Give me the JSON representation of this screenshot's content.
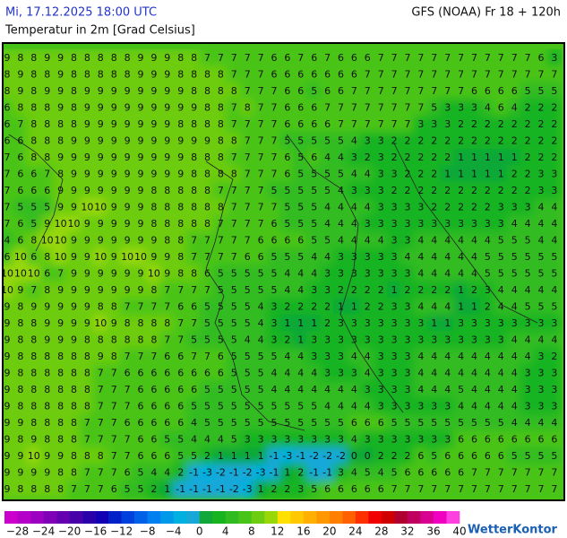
{
  "header": {
    "date": "Mi, 17.12.2025 18:00 UTC",
    "model": "GFS (NOAA) Fr 18 + 120h",
    "title": "Temperatur in 2m [Grad Celsius]"
  },
  "map": {
    "rows": [
      [
        9,
        8,
        8,
        9,
        9,
        8,
        8,
        8,
        8,
        8,
        9,
        9,
        9,
        8,
        8,
        7,
        7,
        7,
        7,
        7,
        6,
        6,
        7,
        6,
        7,
        6,
        6,
        6,
        7,
        7,
        7,
        7,
        7,
        7,
        7,
        7,
        7,
        7,
        7,
        7,
        6,
        3
      ],
      [
        8,
        9,
        8,
        8,
        9,
        8,
        8,
        8,
        8,
        8,
        9,
        9,
        9,
        8,
        8,
        8,
        8,
        7,
        7,
        7,
        6,
        6,
        6,
        6,
        6,
        6,
        6,
        7,
        7,
        7,
        7,
        7,
        7,
        7,
        7,
        7,
        7,
        7,
        7,
        7,
        7,
        7
      ],
      [
        8,
        9,
        8,
        9,
        9,
        8,
        9,
        9,
        9,
        9,
        9,
        9,
        9,
        9,
        8,
        8,
        8,
        8,
        7,
        7,
        7,
        6,
        6,
        5,
        6,
        6,
        7,
        7,
        7,
        7,
        7,
        7,
        7,
        7,
        7,
        6,
        6,
        6,
        6,
        5,
        5,
        5
      ],
      [
        6,
        8,
        8,
        8,
        9,
        8,
        9,
        9,
        9,
        9,
        9,
        9,
        9,
        9,
        9,
        8,
        8,
        7,
        8,
        7,
        7,
        6,
        6,
        6,
        7,
        7,
        7,
        7,
        7,
        7,
        7,
        7,
        5,
        3,
        3,
        3,
        4,
        6,
        4,
        2,
        2,
        2
      ],
      [
        6,
        7,
        8,
        8,
        8,
        8,
        9,
        9,
        9,
        9,
        9,
        9,
        9,
        8,
        8,
        8,
        8,
        7,
        7,
        7,
        7,
        6,
        6,
        6,
        6,
        7,
        7,
        7,
        7,
        7,
        7,
        3,
        3,
        3,
        2,
        2,
        2,
        2,
        2,
        2,
        2,
        2
      ],
      [
        6,
        6,
        8,
        8,
        8,
        9,
        9,
        9,
        9,
        9,
        9,
        9,
        9,
        9,
        9,
        9,
        8,
        8,
        7,
        7,
        7,
        5,
        5,
        5,
        5,
        5,
        4,
        3,
        3,
        2,
        2,
        2,
        2,
        2,
        2,
        2,
        2,
        2,
        2,
        2,
        2,
        2
      ],
      [
        7,
        6,
        8,
        8,
        9,
        9,
        9,
        9,
        9,
        9,
        9,
        9,
        9,
        9,
        8,
        8,
        8,
        7,
        7,
        7,
        7,
        6,
        5,
        6,
        4,
        4,
        3,
        2,
        3,
        2,
        2,
        2,
        2,
        2,
        1,
        1,
        1,
        1,
        1,
        2,
        2,
        2
      ],
      [
        7,
        6,
        6,
        7,
        8,
        9,
        9,
        9,
        9,
        9,
        9,
        9,
        9,
        9,
        8,
        8,
        8,
        8,
        7,
        7,
        7,
        6,
        5,
        5,
        5,
        5,
        4,
        4,
        3,
        3,
        2,
        2,
        2,
        1,
        1,
        1,
        1,
        1,
        2,
        2,
        3,
        3
      ],
      [
        7,
        6,
        6,
        6,
        9,
        9,
        9,
        9,
        9,
        9,
        9,
        8,
        8,
        8,
        8,
        8,
        7,
        7,
        7,
        7,
        5,
        5,
        5,
        5,
        5,
        4,
        3,
        3,
        3,
        2,
        2,
        2,
        2,
        2,
        2,
        2,
        2,
        2,
        2,
        2,
        3,
        3
      ],
      [
        7,
        5,
        5,
        5,
        9,
        9,
        10,
        10,
        9,
        9,
        9,
        8,
        8,
        8,
        8,
        8,
        8,
        7,
        7,
        7,
        7,
        5,
        5,
        5,
        4,
        4,
        4,
        4,
        3,
        3,
        3,
        3,
        2,
        2,
        2,
        2,
        2,
        3,
        3,
        3,
        4,
        4
      ],
      [
        7,
        6,
        5,
        9,
        10,
        10,
        9,
        9,
        9,
        9,
        9,
        8,
        8,
        8,
        8,
        8,
        7,
        7,
        7,
        7,
        6,
        5,
        5,
        5,
        4,
        4,
        4,
        3,
        3,
        3,
        3,
        3,
        3,
        3,
        3,
        3,
        3,
        3,
        4,
        4,
        4,
        4
      ],
      [
        4,
        6,
        8,
        10,
        10,
        9,
        9,
        9,
        9,
        9,
        9,
        9,
        8,
        8,
        7,
        7,
        7,
        7,
        7,
        6,
        6,
        6,
        6,
        5,
        5,
        4,
        4,
        4,
        4,
        3,
        3,
        4,
        4,
        4,
        4,
        4,
        4,
        5,
        5,
        5,
        4,
        4
      ],
      [
        6,
        10,
        6,
        8,
        10,
        9,
        9,
        10,
        9,
        10,
        10,
        9,
        9,
        8,
        7,
        7,
        7,
        7,
        6,
        6,
        5,
        5,
        5,
        4,
        4,
        3,
        3,
        3,
        3,
        3,
        4,
        4,
        4,
        4,
        4,
        4,
        5,
        5,
        5,
        5,
        5,
        5
      ],
      [
        10,
        10,
        10,
        6,
        7,
        9,
        9,
        9,
        9,
        9,
        9,
        10,
        9,
        8,
        8,
        6,
        5,
        5,
        5,
        5,
        5,
        4,
        4,
        4,
        3,
        3,
        3,
        3,
        3,
        3,
        3,
        4,
        4,
        4,
        4,
        4,
        5,
        5,
        5,
        5,
        5,
        5
      ],
      [
        10,
        9,
        7,
        8,
        9,
        9,
        9,
        9,
        9,
        9,
        9,
        8,
        7,
        7,
        7,
        7,
        5,
        5,
        5,
        5,
        5,
        4,
        4,
        3,
        3,
        2,
        2,
        2,
        2,
        1,
        2,
        2,
        2,
        2,
        1,
        2,
        3,
        4,
        4,
        4,
        4,
        4
      ],
      [
        9,
        8,
        9,
        9,
        9,
        9,
        9,
        8,
        8,
        7,
        7,
        7,
        7,
        6,
        6,
        5,
        5,
        5,
        5,
        4,
        3,
        2,
        2,
        2,
        2,
        1,
        1,
        2,
        2,
        3,
        3,
        4,
        4,
        4,
        1,
        1,
        2,
        4,
        4,
        5,
        5,
        5
      ],
      [
        9,
        8,
        8,
        9,
        9,
        9,
        9,
        10,
        9,
        8,
        8,
        8,
        8,
        7,
        7,
        5,
        5,
        5,
        5,
        4,
        3,
        1,
        1,
        1,
        2,
        3,
        3,
        3,
        3,
        3,
        3,
        3,
        1,
        1,
        3,
        3,
        3,
        3,
        3,
        3,
        3,
        3
      ],
      [
        9,
        8,
        8,
        9,
        9,
        9,
        8,
        8,
        8,
        8,
        8,
        8,
        7,
        7,
        5,
        5,
        5,
        5,
        4,
        4,
        3,
        2,
        1,
        3,
        3,
        3,
        3,
        3,
        3,
        3,
        3,
        3,
        3,
        3,
        3,
        3,
        3,
        3,
        4,
        4,
        4,
        4
      ],
      [
        9,
        8,
        8,
        8,
        8,
        8,
        8,
        9,
        8,
        7,
        7,
        7,
        6,
        6,
        7,
        7,
        6,
        5,
        5,
        5,
        5,
        4,
        4,
        3,
        3,
        3,
        4,
        4,
        3,
        3,
        3,
        4,
        4,
        4,
        4,
        4,
        4,
        4,
        4,
        4,
        3,
        2
      ],
      [
        9,
        8,
        8,
        8,
        8,
        8,
        8,
        7,
        7,
        6,
        6,
        6,
        6,
        6,
        6,
        6,
        6,
        5,
        5,
        5,
        4,
        4,
        4,
        4,
        3,
        3,
        3,
        4,
        3,
        3,
        3,
        4,
        4,
        4,
        4,
        4,
        4,
        4,
        4,
        3,
        3,
        3
      ],
      [
        9,
        8,
        8,
        8,
        8,
        8,
        8,
        7,
        7,
        7,
        6,
        6,
        6,
        6,
        6,
        5,
        5,
        5,
        5,
        5,
        4,
        4,
        4,
        4,
        4,
        4,
        4,
        3,
        3,
        3,
        3,
        4,
        4,
        4,
        5,
        4,
        4,
        4,
        4,
        3,
        3,
        3
      ],
      [
        9,
        8,
        8,
        8,
        8,
        8,
        8,
        7,
        7,
        7,
        6,
        6,
        6,
        6,
        5,
        5,
        5,
        5,
        5,
        5,
        5,
        5,
        5,
        5,
        4,
        4,
        4,
        4,
        3,
        3,
        3,
        3,
        3,
        3,
        4,
        4,
        4,
        4,
        4,
        3,
        3,
        3
      ],
      [
        9,
        9,
        8,
        8,
        8,
        8,
        7,
        7,
        7,
        6,
        6,
        6,
        6,
        6,
        4,
        5,
        5,
        5,
        5,
        5,
        5,
        5,
        5,
        5,
        5,
        5,
        6,
        6,
        6,
        5,
        5,
        5,
        5,
        5,
        5,
        5,
        5,
        5,
        4,
        4,
        4,
        4
      ],
      [
        9,
        8,
        9,
        8,
        8,
        8,
        7,
        7,
        7,
        7,
        6,
        6,
        5,
        5,
        4,
        4,
        4,
        5,
        3,
        3,
        3,
        3,
        3,
        3,
        3,
        3,
        4,
        3,
        3,
        3,
        3,
        3,
        3,
        3,
        6,
        6,
        6,
        6,
        6,
        6,
        6,
        6
      ],
      [
        9,
        9,
        10,
        9,
        9,
        8,
        8,
        8,
        7,
        7,
        6,
        6,
        6,
        5,
        5,
        2,
        1,
        1,
        1,
        1,
        -1,
        -3,
        -1,
        -2,
        -2,
        -2,
        0,
        0,
        2,
        2,
        2,
        6,
        5,
        6,
        6,
        6,
        6,
        6,
        5,
        5,
        5,
        5
      ],
      [
        9,
        9,
        9,
        9,
        8,
        8,
        7,
        7,
        7,
        6,
        5,
        4,
        4,
        2,
        -1,
        -3,
        -2,
        -1,
        -2,
        -3,
        -1,
        1,
        2,
        -1,
        -1,
        3,
        4,
        5,
        4,
        5,
        6,
        6,
        6,
        6,
        6,
        7,
        7,
        7,
        7,
        7,
        7,
        7
      ],
      [
        9,
        8,
        8,
        8,
        8,
        7,
        7,
        7,
        6,
        5,
        5,
        2,
        1,
        -1,
        -1,
        -1,
        -1,
        -2,
        -3,
        1,
        2,
        2,
        3,
        5,
        6,
        6,
        6,
        6,
        6,
        7,
        7,
        7,
        7,
        7,
        7,
        7,
        7,
        7,
        7,
        7,
        7,
        7
      ]
    ]
  },
  "legend": {
    "colors": [
      "#cc00cc",
      "#b400c8",
      "#9c00c0",
      "#8000b8",
      "#6400b0",
      "#4800a8",
      "#2c00a8",
      "#1400b4",
      "#0020c8",
      "#0040dc",
      "#0060e8",
      "#0080f0",
      "#0098e8",
      "#00b0e0",
      "#18a8d8",
      "#10a838",
      "#18b420",
      "#30bc20",
      "#48c418",
      "#6ccc10",
      "#98d808",
      "#ffe000",
      "#ffc800",
      "#ffb000",
      "#ff9800",
      "#ff8000",
      "#ff6000",
      "#ff3000",
      "#f00000",
      "#d00000",
      "#b00030",
      "#c00060",
      "#d80090",
      "#f000c0",
      "#ff40e0"
    ],
    "labels": [
      "−28",
      "−24",
      "−20",
      "−16",
      "−12",
      "−8",
      "−4",
      "0",
      "4",
      "8",
      "12",
      "16",
      "20",
      "24",
      "28",
      "32",
      "36",
      "40"
    ]
  },
  "logo": "WetterKontor"
}
